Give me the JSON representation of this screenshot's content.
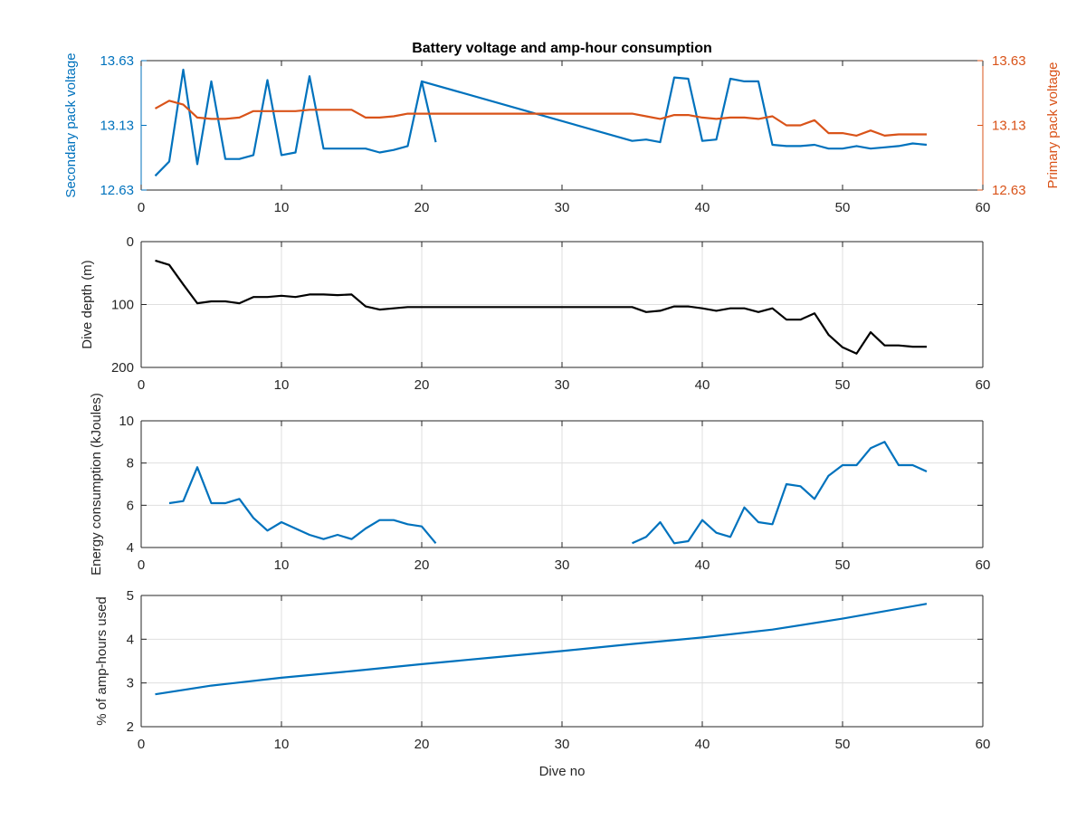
{
  "figure": {
    "title": "Battery voltage and amp-hour consumption",
    "xlabel": "Dive no"
  },
  "colors": {
    "blue": "#0072BD",
    "orange": "#D95319",
    "black": "#000000",
    "grid": "#DFDFDF"
  },
  "chart_data": [
    {
      "type": "line",
      "title": "Battery voltage and amp-hour consumption",
      "xlabel": "",
      "ylabel": "Secondary pack voltage",
      "y2label": "Primary pack voltage",
      "xlim": [
        0,
        60
      ],
      "ylim": [
        12.63,
        13.63
      ],
      "y2lim": [
        12.63,
        13.63
      ],
      "xticks": [
        "0",
        "10",
        "20",
        "30",
        "40",
        "50",
        "60"
      ],
      "yticks": [
        "12.63",
        "13.13",
        "13.63"
      ],
      "y2ticks": [
        "12.63",
        "13.13",
        "13.63"
      ],
      "grid": false,
      "series": [
        {
          "axis": "left",
          "color": "#0072BD",
          "x": [
            1,
            2,
            3,
            4,
            5,
            6,
            7,
            8,
            9,
            10,
            11,
            12,
            13,
            14,
            15,
            16,
            17,
            18,
            19,
            20,
            21
          ],
          "y": [
            12.74,
            12.85,
            13.56,
            12.83,
            13.47,
            12.87,
            12.87,
            12.9,
            13.48,
            12.9,
            12.92,
            13.51,
            12.95,
            12.95,
            12.95,
            12.95,
            12.92,
            12.94,
            12.97,
            13.47,
            13.0
          ]
        },
        {
          "axis": "left",
          "color": "#0072BD",
          "x": [
            20,
            35,
            36,
            37,
            38,
            39,
            40,
            41,
            42,
            43,
            44,
            45,
            46,
            47,
            48,
            49,
            50,
            51,
            52,
            53,
            54,
            55,
            56
          ],
          "y": [
            13.47,
            13.01,
            13.02,
            13.0,
            13.5,
            13.49,
            13.01,
            13.02,
            13.49,
            13.47,
            13.47,
            12.98,
            12.97,
            12.97,
            12.98,
            12.95,
            12.95,
            12.97,
            12.95,
            12.96,
            12.97,
            12.99,
            12.98
          ]
        },
        {
          "axis": "right",
          "color": "#D95319",
          "x": [
            1,
            2,
            3,
            4,
            5,
            6,
            7,
            8,
            9,
            10,
            11,
            12,
            13,
            14,
            15,
            16,
            17,
            18,
            19,
            20,
            21,
            30,
            35,
            36,
            37,
            38,
            39,
            40,
            41,
            42,
            43,
            44,
            45,
            46,
            47,
            48,
            49,
            50,
            51,
            52,
            53,
            54,
            55,
            56
          ],
          "y": [
            13.26,
            13.32,
            13.29,
            13.19,
            13.18,
            13.18,
            13.19,
            13.24,
            13.24,
            13.24,
            13.24,
            13.25,
            13.25,
            13.25,
            13.25,
            13.19,
            13.19,
            13.2,
            13.22,
            13.22,
            13.22,
            13.22,
            13.22,
            13.2,
            13.18,
            13.21,
            13.21,
            13.19,
            13.18,
            13.19,
            13.19,
            13.18,
            13.2,
            13.13,
            13.13,
            13.17,
            13.07,
            13.07,
            13.05,
            13.09,
            13.05,
            13.06,
            13.06,
            13.06
          ]
        }
      ]
    },
    {
      "type": "line",
      "xlabel": "",
      "ylabel": "Dive depth (m)",
      "xlim": [
        0,
        60
      ],
      "ylim": [
        0,
        200
      ],
      "y_reversed": true,
      "xticks": [
        "0",
        "10",
        "20",
        "30",
        "40",
        "50",
        "60"
      ],
      "yticks": [
        "0",
        "100",
        "200"
      ],
      "grid": true,
      "series": [
        {
          "color": "#000000",
          "x": [
            1,
            2,
            3,
            4,
            5,
            6,
            7,
            8,
            9,
            10,
            11,
            12,
            13,
            14,
            15,
            16,
            17,
            18,
            19,
            20,
            22,
            30,
            35,
            36,
            37,
            38,
            39,
            40,
            41,
            42,
            43,
            44,
            45,
            46,
            47,
            48,
            49,
            50,
            51,
            52,
            53,
            54,
            55,
            56
          ],
          "y": [
            30,
            37,
            68,
            98,
            95,
            95,
            98,
            88,
            88,
            86,
            88,
            84,
            84,
            85,
            84,
            103,
            108,
            106,
            104,
            104,
            104,
            104,
            104,
            112,
            110,
            103,
            103,
            106,
            110,
            106,
            106,
            112,
            106,
            124,
            124,
            114,
            148,
            168,
            178,
            144,
            165,
            165,
            167,
            167
          ]
        }
      ]
    },
    {
      "type": "line",
      "xlabel": "",
      "ylabel": "Energy consumption (kJoules)",
      "xlim": [
        0,
        60
      ],
      "ylim": [
        4,
        10
      ],
      "xticks": [
        "0",
        "10",
        "20",
        "30",
        "40",
        "50",
        "60"
      ],
      "yticks": [
        "4",
        "6",
        "8",
        "10"
      ],
      "grid": true,
      "series": [
        {
          "color": "#0072BD",
          "x": [
            2,
            3,
            4,
            5,
            6,
            7,
            8,
            9,
            10,
            11,
            12,
            13,
            14,
            15,
            16,
            17,
            18,
            19,
            20,
            21
          ],
          "y": [
            6.1,
            6.2,
            7.8,
            6.1,
            6.1,
            6.3,
            5.4,
            4.8,
            5.2,
            4.9,
            4.6,
            4.4,
            4.6,
            4.4,
            4.9,
            5.3,
            5.3,
            5.1,
            5.0,
            4.2
          ]
        },
        {
          "color": "#0072BD",
          "x": [
            35,
            36,
            37,
            38,
            39,
            40,
            41,
            42,
            43,
            44,
            45,
            46,
            47,
            48,
            49,
            50,
            51,
            52,
            53,
            54,
            55,
            56
          ],
          "y": [
            4.2,
            4.5,
            5.2,
            4.2,
            4.3,
            5.3,
            4.7,
            4.5,
            5.9,
            5.2,
            5.1,
            7.0,
            6.9,
            6.3,
            7.4,
            7.9,
            7.9,
            8.7,
            9.0,
            7.9,
            7.9,
            7.6
          ]
        }
      ]
    },
    {
      "type": "line",
      "xlabel": "Dive no",
      "ylabel": "% of amp-hours used",
      "xlim": [
        0,
        60
      ],
      "ylim": [
        2,
        5
      ],
      "xticks": [
        "0",
        "10",
        "20",
        "30",
        "40",
        "50",
        "60"
      ],
      "yticks": [
        "2",
        "3",
        "4",
        "5"
      ],
      "grid": true,
      "series": [
        {
          "color": "#0072BD",
          "x": [
            1,
            5,
            10,
            15,
            20,
            25,
            30,
            35,
            40,
            45,
            50,
            56
          ],
          "y": [
            2.74,
            2.94,
            3.12,
            3.27,
            3.43,
            3.58,
            3.73,
            3.89,
            4.04,
            4.22,
            4.47,
            4.81
          ]
        }
      ]
    }
  ]
}
